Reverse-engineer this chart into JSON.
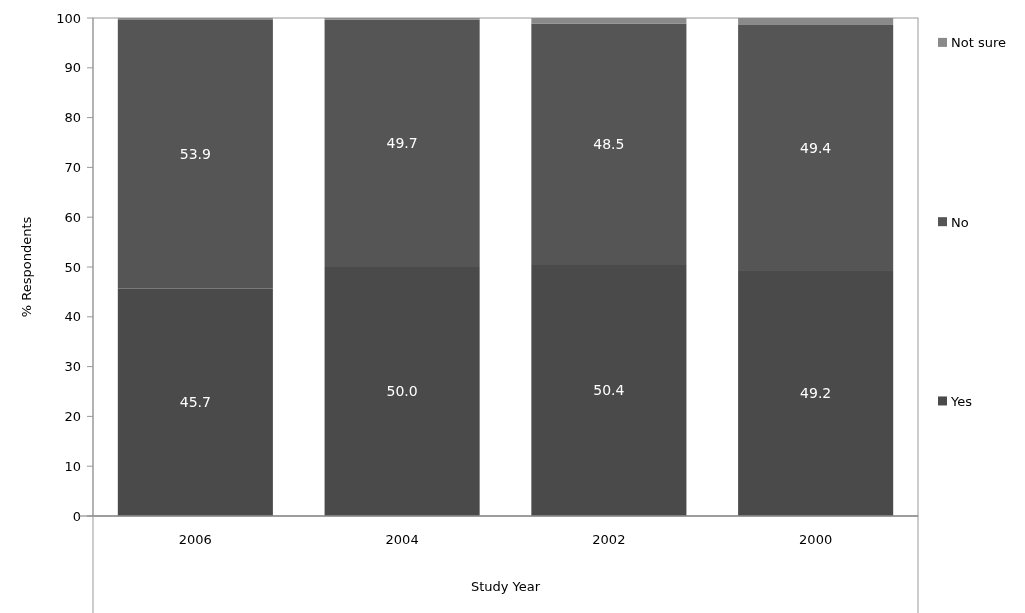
{
  "chart_data": {
    "type": "bar",
    "stacked": true,
    "xlabel": "Study Year",
    "ylabel": "% Respondents",
    "categories": [
      "2006",
      "2004",
      "2002",
      "2000"
    ],
    "series": [
      {
        "name": "Yes",
        "color": "#4a4a4a",
        "values": [
          45.7,
          50.0,
          50.4,
          49.2
        ],
        "value_labels": [
          "45.7",
          "50.0",
          "50.4",
          "49.2"
        ]
      },
      {
        "name": "No",
        "color": "#555555",
        "values": [
          53.9,
          49.7,
          48.5,
          49.4
        ],
        "value_labels": [
          "53.9",
          "49.7",
          "48.5",
          "49.4"
        ]
      },
      {
        "name": "Not sure",
        "color": "#8a8a8a",
        "values": [
          0.4,
          0.3,
          1.1,
          1.4
        ],
        "value_labels": [
          null,
          null,
          null,
          null
        ]
      }
    ],
    "ylim": [
      0,
      100
    ],
    "yticks": [
      0,
      10,
      20,
      30,
      40,
      50,
      60,
      70,
      80,
      90,
      100
    ],
    "legend": "right",
    "grid": false
  }
}
